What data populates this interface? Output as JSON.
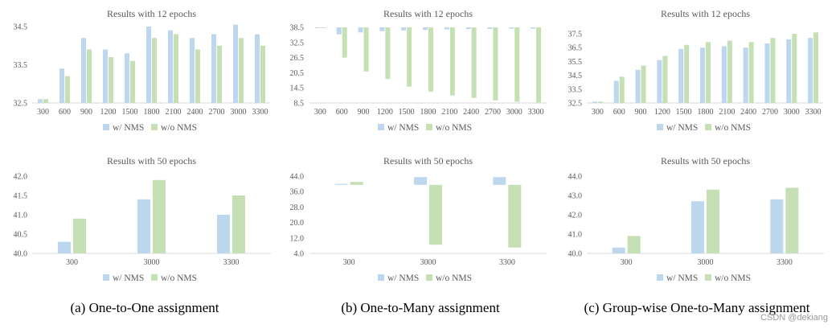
{
  "colors": {
    "with_nms": "#bdd7ee",
    "without_nms": "#c5e0b4",
    "axis": "#d9d9d9",
    "text": "#595959"
  },
  "captions": [
    "(a) One-to-One assignment",
    "(b) One-to-Many assignment",
    "(c) Group-wise One-to-Many assignment"
  ],
  "watermark": "CSDN @dekiang",
  "chart_data": [
    {
      "id": "a12",
      "type": "bar",
      "title": "Results with 12 epochs",
      "categories": [
        "300",
        "600",
        "900",
        "1200",
        "1500",
        "1800",
        "2100",
        "2400",
        "2700",
        "3000",
        "3300"
      ],
      "series": [
        {
          "name": "w/ NMS",
          "values": [
            32.6,
            33.4,
            34.2,
            33.9,
            33.8,
            34.5,
            34.4,
            34.2,
            34.3,
            34.55,
            34.3
          ]
        },
        {
          "name": "w/o NMS",
          "values": [
            32.6,
            33.2,
            33.9,
            33.7,
            33.6,
            34.2,
            34.3,
            33.9,
            34.0,
            34.2,
            34.0
          ]
        }
      ],
      "yticks": [
        "32.5",
        "33.5",
        "34.5"
      ],
      "ylim": [
        32.5,
        34.5
      ],
      "baseline": 32.5
    },
    {
      "id": "b12",
      "type": "bar",
      "title": "Results with 12 epochs",
      "categories": [
        "300",
        "600",
        "900",
        "1200",
        "1500",
        "1800",
        "2100",
        "2400",
        "2700",
        "3000",
        "3300"
      ],
      "series": [
        {
          "name": "w/ NMS",
          "values": [
            38.5,
            35.7,
            36.5,
            37.0,
            37.3,
            37.5,
            37.7,
            37.8,
            37.9,
            38.0,
            38.0
          ]
        },
        {
          "name": "w/o NMS",
          "values": [
            38.5,
            26.5,
            21.0,
            18.0,
            15.0,
            13.0,
            11.5,
            10.5,
            9.5,
            9.0,
            8.7
          ]
        }
      ],
      "yticks": [
        "8.5",
        "14.5",
        "20.5",
        "26.5",
        "32.5",
        "38.5"
      ],
      "ylim": [
        8.5,
        38.5
      ],
      "baseline": 38.5
    },
    {
      "id": "c12",
      "type": "bar",
      "title": "Results with 12 epochs",
      "categories": [
        "300",
        "600",
        "900",
        "1200",
        "1500",
        "1800",
        "2100",
        "2400",
        "2700",
        "3000",
        "3300"
      ],
      "series": [
        {
          "name": "w/ NMS",
          "values": [
            32.6,
            34.1,
            34.9,
            35.6,
            36.4,
            36.5,
            36.6,
            36.5,
            36.8,
            37.1,
            37.2
          ]
        },
        {
          "name": "w/o NMS",
          "values": [
            32.6,
            34.4,
            35.2,
            35.9,
            36.7,
            36.9,
            37.0,
            36.9,
            37.2,
            37.5,
            37.6
          ]
        }
      ],
      "yticks": [
        "32.5",
        "33.5",
        "34.5",
        "35.5",
        "36.5",
        "37.5"
      ],
      "ylim": [
        32.5,
        37.5
      ],
      "baseline": 32.5
    },
    {
      "id": "a50",
      "type": "bar",
      "title": "Results with 50 epochs",
      "categories": [
        "300",
        "3000",
        "3300"
      ],
      "series": [
        {
          "name": "w/ NMS",
          "values": [
            40.3,
            41.4,
            41.0
          ]
        },
        {
          "name": "w/o NMS",
          "values": [
            40.9,
            41.9,
            41.5
          ]
        }
      ],
      "yticks": [
        "40.0",
        "40.5",
        "41.0",
        "41.5",
        "42.0"
      ],
      "ylim": [
        40.0,
        42.0
      ],
      "baseline": 40.0
    },
    {
      "id": "b50",
      "type": "bar",
      "title": "Results with 50 epochs",
      "categories": [
        "300",
        "3000",
        "3300"
      ],
      "series": [
        {
          "name": "w/ NMS",
          "values": [
            40.0,
            43.5,
            43.5
          ]
        },
        {
          "name": "w/o NMS",
          "values": [
            41.0,
            8.5,
            7.0
          ]
        }
      ],
      "yticks": [
        "4.0",
        "12.0",
        "20.0",
        "28.0",
        "36.0",
        "44.0"
      ],
      "ylim": [
        4.0,
        44.0
      ],
      "baseline": 39.5
    },
    {
      "id": "c50",
      "type": "bar",
      "title": "Results with 50 epochs",
      "categories": [
        "300",
        "3000",
        "3300"
      ],
      "series": [
        {
          "name": "w/ NMS",
          "values": [
            40.3,
            42.7,
            42.8
          ]
        },
        {
          "name": "w/o NMS",
          "values": [
            40.9,
            43.3,
            43.4
          ]
        }
      ],
      "yticks": [
        "40.0",
        "41.0",
        "42.0",
        "43.0",
        "44.0"
      ],
      "ylim": [
        40.0,
        44.0
      ],
      "baseline": 40.0
    }
  ]
}
